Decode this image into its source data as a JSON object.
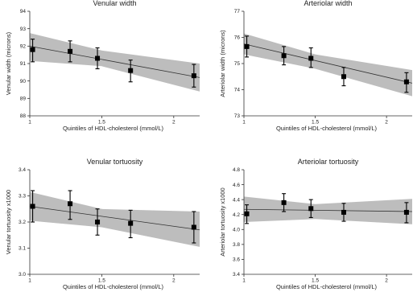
{
  "figure": {
    "colors": {
      "band": "#bdbdbd",
      "line": "#333333",
      "marker": "#000000",
      "axis": "#333333"
    }
  },
  "chart_data": [
    {
      "type": "scatter",
      "title": "Venular width",
      "xlabel": "Quintiles of HDL-cholesterol (mmol/L)",
      "ylabel": "Venular width (microns)",
      "xlim": [
        1.0,
        2.18
      ],
      "ylim": [
        88,
        94
      ],
      "xticks": [
        1,
        1.5,
        2
      ],
      "xtick_labels": [
        "1",
        "1.5",
        "2"
      ],
      "yticks": [
        88,
        89,
        90,
        91,
        92,
        93,
        94
      ],
      "ytick_labels": [
        "88",
        "89",
        "90",
        "91",
        "92",
        "93",
        "94"
      ],
      "points": [
        {
          "x": 1.02,
          "y": 91.8,
          "lo": 91.1,
          "hi": 92.4
        },
        {
          "x": 1.28,
          "y": 91.7,
          "lo": 91.1,
          "hi": 92.3
        },
        {
          "x": 1.47,
          "y": 91.3,
          "lo": 90.7,
          "hi": 91.9
        },
        {
          "x": 1.7,
          "y": 90.6,
          "lo": 89.95,
          "hi": 91.2
        },
        {
          "x": 2.14,
          "y": 90.3,
          "lo": 89.65,
          "hi": 90.95
        }
      ],
      "fit": {
        "x": [
          1.0,
          2.18
        ],
        "y": [
          92.0,
          90.2
        ]
      },
      "band": {
        "x": [
          1.0,
          1.5,
          2.18
        ],
        "upper": [
          92.75,
          91.75,
          91.0
        ],
        "lower": [
          91.15,
          90.85,
          89.4
        ]
      }
    },
    {
      "type": "scatter",
      "title": "Arteriolar width",
      "xlabel": "Quintiles of HDL-cholesterol (mmol/L)",
      "ylabel": "Arteriolar width (microns)",
      "xlim": [
        1.0,
        2.18
      ],
      "ylim": [
        73,
        77
      ],
      "xticks": [
        1,
        1.5,
        2
      ],
      "xtick_labels": [
        "1",
        "1.5",
        "2"
      ],
      "yticks": [
        73,
        74,
        75,
        76,
        77
      ],
      "ytick_labels": [
        "73",
        "74",
        "75",
        "76",
        "77"
      ],
      "points": [
        {
          "x": 1.02,
          "y": 75.65,
          "lo": 75.25,
          "hi": 76.05
        },
        {
          "x": 1.28,
          "y": 75.3,
          "lo": 74.95,
          "hi": 75.65
        },
        {
          "x": 1.47,
          "y": 75.2,
          "lo": 74.85,
          "hi": 75.6
        },
        {
          "x": 1.7,
          "y": 74.5,
          "lo": 74.15,
          "hi": 74.85
        },
        {
          "x": 2.14,
          "y": 74.3,
          "lo": 73.9,
          "hi": 74.65
        }
      ],
      "fit": {
        "x": [
          1.0,
          2.18
        ],
        "y": [
          75.75,
          74.25
        ]
      },
      "band": {
        "x": [
          1.0,
          1.5,
          2.18
        ],
        "upper": [
          76.15,
          75.35,
          74.75
        ],
        "lower": [
          75.35,
          74.8,
          73.75
        ]
      }
    },
    {
      "type": "scatter",
      "title": "Venular tortuosity",
      "xlabel": "Quintiles of HDL-cholesterol (mmol/L)",
      "ylabel": "Venular tortuosity x1000",
      "xlim": [
        1.0,
        2.18
      ],
      "ylim": [
        3.0,
        3.4
      ],
      "xticks": [
        1,
        1.5,
        2
      ],
      "xtick_labels": [
        "1",
        "1.5",
        "2"
      ],
      "yticks": [
        3.0,
        3.1,
        3.2,
        3.3,
        3.4
      ],
      "ytick_labels": [
        "3.0",
        "3.1",
        "3.2",
        "3.3",
        "3.4"
      ],
      "points": [
        {
          "x": 1.02,
          "y": 3.26,
          "lo": 3.2,
          "hi": 3.32
        },
        {
          "x": 1.28,
          "y": 3.27,
          "lo": 3.21,
          "hi": 3.32
        },
        {
          "x": 1.47,
          "y": 3.2,
          "lo": 3.15,
          "hi": 3.25
        },
        {
          "x": 1.7,
          "y": 3.195,
          "lo": 3.14,
          "hi": 3.245
        },
        {
          "x": 2.14,
          "y": 3.18,
          "lo": 3.12,
          "hi": 3.24
        }
      ],
      "fit": {
        "x": [
          1.0,
          2.18
        ],
        "y": [
          3.26,
          3.17
        ]
      },
      "band": {
        "x": [
          1.0,
          1.5,
          2.18
        ],
        "upper": [
          3.315,
          3.25,
          3.24
        ],
        "lower": [
          3.205,
          3.18,
          3.105
        ]
      }
    },
    {
      "type": "scatter",
      "title": "Arteriolar tortuosity",
      "xlabel": "Quintiles of HDL-cholesterol (mmol/L)",
      "ylabel": "Arteriolar tortuosity x1000",
      "xlim": [
        1.0,
        2.18
      ],
      "ylim": [
        3.4,
        4.8
      ],
      "xticks": [
        1,
        1.5,
        2
      ],
      "xtick_labels": [
        "1",
        "1.5",
        "2"
      ],
      "yticks": [
        3.4,
        3.6,
        3.8,
        4.0,
        4.2,
        4.4,
        4.6,
        4.8
      ],
      "ytick_labels": [
        "3.4",
        "3.6",
        "3.8",
        "4.0",
        "4.2",
        "4.4",
        "4.6",
        "4.8"
      ],
      "points": [
        {
          "x": 1.02,
          "y": 4.21,
          "lo": 4.08,
          "hi": 4.33
        },
        {
          "x": 1.28,
          "y": 4.36,
          "lo": 4.24,
          "hi": 4.48
        },
        {
          "x": 1.47,
          "y": 4.28,
          "lo": 4.16,
          "hi": 4.4
        },
        {
          "x": 1.7,
          "y": 4.23,
          "lo": 4.11,
          "hi": 4.35
        },
        {
          "x": 2.14,
          "y": 4.23,
          "lo": 4.09,
          "hi": 4.36
        }
      ],
      "fit": {
        "x": [
          1.0,
          2.18
        ],
        "y": [
          4.27,
          4.24
        ]
      },
      "band": {
        "x": [
          1.0,
          1.5,
          2.18
        ],
        "upper": [
          4.44,
          4.34,
          4.41
        ],
        "lower": [
          4.1,
          4.14,
          4.07
        ]
      }
    }
  ]
}
